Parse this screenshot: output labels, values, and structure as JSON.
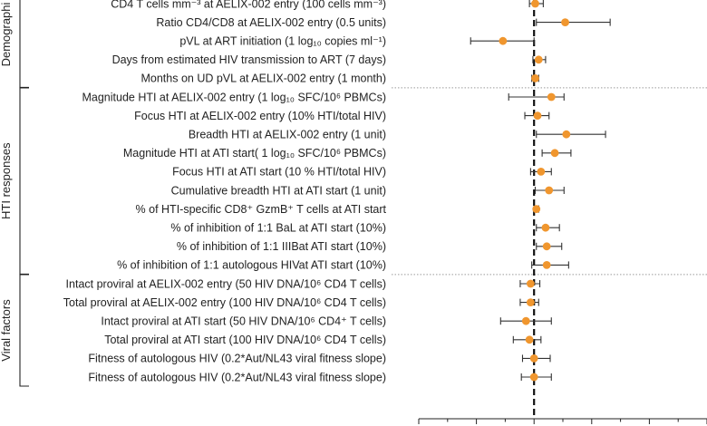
{
  "chart_data": {
    "type": "forest",
    "colors": {
      "point": "#f0962e",
      "whisker": "#333333",
      "reference": "#111111",
      "separator": "#9a9a9a"
    },
    "reference_line": 1.0,
    "x_axis_visible_tick_labels": [],
    "groups": [
      {
        "name": "Demographic",
        "shown_text": "Demographi",
        "rows": [
          {
            "label": "CD4 T cells mm⁻³ at AELIX-002 entry (100 cells mm⁻³)",
            "est": 1.01,
            "lo": 0.96,
            "hi": 1.08
          },
          {
            "label": "Ratio CD4/CD8 at AELIX-002 entry (0.5 units)",
            "est": 1.27,
            "lo": 1.02,
            "hi": 1.66
          },
          {
            "label": "pVL at ART initiation (1 log₁₀ copies ml⁻¹)",
            "est": 0.73,
            "lo": 0.45,
            "hi": 1.0
          },
          {
            "label": "Days from estimated HIV transmission to ART (7 days)",
            "est": 1.04,
            "lo": 0.99,
            "hi": 1.1
          },
          {
            "label": "Months on UD pVL at AELIX-002 entry (1 month)",
            "est": 1.01,
            "lo": 0.98,
            "hi": 1.04
          }
        ]
      },
      {
        "name": "HTI responses",
        "rows": [
          {
            "label": "Magnitude HTI at AELIX-002 entry (1 log₁₀ SFC/10⁶ PBMCs)",
            "est": 1.15,
            "lo": 0.78,
            "hi": 1.26
          },
          {
            "label": "Focus HTI at AELIX-002 entry (10% HTI/total HIV)",
            "est": 1.03,
            "lo": 0.92,
            "hi": 1.13
          },
          {
            "label": "Breadth HTI at AELIX-002 entry (1 unit)",
            "est": 1.28,
            "lo": 1.02,
            "hi": 1.62
          },
          {
            "label": "Magnitude HTI at ATI start( 1 log₁₀ SFC/10⁶ PBMCs)",
            "est": 1.18,
            "lo": 1.07,
            "hi": 1.32
          },
          {
            "label": "Focus HTI at ATI start (10 % HTI/total HIV)",
            "est": 1.06,
            "lo": 0.97,
            "hi": 1.15
          },
          {
            "label": "Cumulative breadth HTI at ATI start (1 unit)",
            "est": 1.13,
            "lo": 1.01,
            "hi": 1.26
          },
          {
            "label": "% of HTI-specific CD8⁺ GzmB⁺ T cells at ATI start",
            "est": 1.02,
            "lo": 1.0,
            "hi": 1.04
          },
          {
            "label": "% of inhibition of 1:1 BaL at ATI start (10%)",
            "est": 1.1,
            "lo": 1.02,
            "hi": 1.22
          },
          {
            "label": "% of inhibition of 1:1 IIIBat ATI start (10%)",
            "est": 1.11,
            "lo": 1.02,
            "hi": 1.24
          },
          {
            "label": "% of inhibition of 1:1 autologous HIVat ATI start (10%)",
            "est": 1.11,
            "lo": 0.98,
            "hi": 1.3
          }
        ]
      },
      {
        "name": "Viral factors",
        "rows": [
          {
            "label": "Intact proviral at AELIX-002 entry (50 HIV DNA/10⁶ CD4 T cells)",
            "est": 0.97,
            "lo": 0.88,
            "hi": 1.05
          },
          {
            "label": "Total proviral at AELIX-002 entry (100 HIV DNA/10⁶ CD4 T cells)",
            "est": 0.97,
            "lo": 0.88,
            "hi": 1.04
          },
          {
            "label": "Intact proviral at ATI start (50 HIV DNA/10⁶ CD4⁺ T cells)",
            "est": 0.93,
            "lo": 0.71,
            "hi": 1.15
          },
          {
            "label": "Total proviral at ATI start (100 HIV DNA/10⁶ CD4 T cells)",
            "est": 0.96,
            "lo": 0.82,
            "hi": 1.06
          },
          {
            "label": "Fitness of autologous HIV (0.2*Aut/NL43 viral fitness slope)",
            "est": 1.0,
            "lo": 0.9,
            "hi": 1.14
          },
          {
            "label": "Fitness of autologous HIV (0.2*Aut/NL43 viral fitness slope)",
            "est": 1.0,
            "lo": 0.89,
            "hi": 1.15
          }
        ]
      }
    ]
  }
}
